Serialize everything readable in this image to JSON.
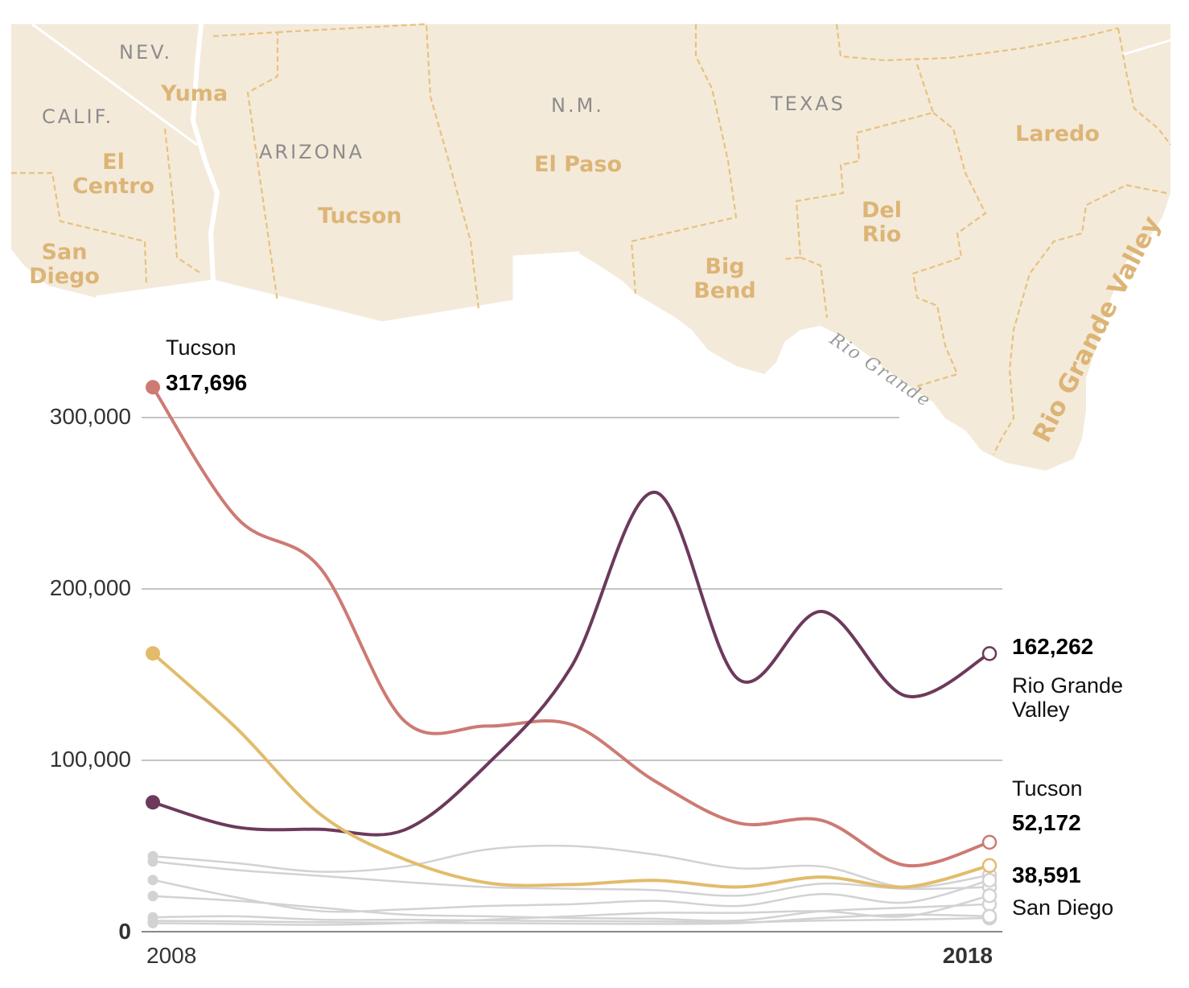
{
  "map": {
    "state_labels": [
      "NEV.",
      "CALIF.",
      "ARIZONA",
      "N.M.",
      "TEXAS"
    ],
    "sector_labels": [
      "Yuma",
      "El",
      "Centro",
      "Tucson",
      "El Paso",
      "San",
      "Diego",
      "Big",
      "Bend",
      "Del",
      "Rio",
      "Laredo",
      "Rio Grande Valley"
    ],
    "river_label": "Rio Grande",
    "land_color": "#f4eada",
    "border_color": "#ffffff",
    "sector_border_color": "#e6c27f",
    "sector_label_color": "#dcb576"
  },
  "chart_data": {
    "type": "line",
    "x": [
      2008,
      2009,
      2010,
      2011,
      2012,
      2013,
      2014,
      2015,
      2016,
      2017,
      2018
    ],
    "ylim": [
      0,
      300000
    ],
    "yticks": [
      "0",
      "100,000",
      "200,000",
      "300,000"
    ],
    "xtick_labels": [
      "2008",
      "2018"
    ],
    "grid": true,
    "series": [
      {
        "name": "Tucson",
        "color": "#cd7a73",
        "highlight": true,
        "values": [
          317696,
          241673,
          212202,
          123285,
          120000,
          120939,
          87915,
          63397,
          64891,
          38657,
          52172
        ]
      },
      {
        "name": "Rio Grande Valley",
        "color": "#6c3a5b",
        "highlight": true,
        "values": [
          75473,
          60992,
          59766,
          59243,
          97762,
          154453,
          256393,
          147257,
          186830,
          137562,
          162262
        ]
      },
      {
        "name": "",
        "color": "#e2bc6c",
        "highlight": true,
        "values": [
          162392,
          118721,
          68565,
          42447,
          28461,
          27496,
          29911,
          26086,
          31891,
          26086,
          38591
        ]
      },
      {
        "name": "San Diego",
        "color": "#d2d2d2",
        "highlight": false,
        "values": [
          8363,
          9000,
          7000,
          7000,
          6500,
          6200,
          6000,
          5500,
          6500,
          7000,
          8000
        ]
      },
      {
        "name": "",
        "color": "#d2d2d2",
        "highlight": false,
        "values": [
          40962,
          36000,
          32562,
          29000,
          26000,
          25000,
          24255,
          21000,
          28000,
          25000,
          26000
        ]
      },
      {
        "name": "",
        "color": "#d2d2d2",
        "highlight": false,
        "values": [
          44000,
          40000,
          35000,
          38000,
          48000,
          50000,
          45000,
          37000,
          38000,
          26000,
          33000
        ]
      },
      {
        "name": "",
        "color": "#d2d2d2",
        "highlight": false,
        "values": [
          30191,
          20000,
          12000,
          13000,
          15000,
          16000,
          18000,
          15000,
          22000,
          17000,
          30000
        ]
      },
      {
        "name": "",
        "color": "#d2d2d2",
        "highlight": false,
        "values": [
          20761,
          18000,
          14000,
          10000,
          9000,
          8000,
          7500,
          6500,
          12000,
          14000,
          16000
        ]
      },
      {
        "name": "",
        "color": "#d2d2d2",
        "highlight": false,
        "values": [
          6357,
          6000,
          5500,
          5200,
          5000,
          4700,
          4500,
          5000,
          8000,
          10000,
          9000
        ]
      },
      {
        "name": "",
        "color": "#d2d2d2",
        "highlight": false,
        "values": [
          5000,
          4500,
          4000,
          5000,
          7000,
          9000,
          11000,
          11000,
          12000,
          9000,
          21000
        ]
      }
    ],
    "annotations": {
      "start_name": "Tucson",
      "start_value": "317,696",
      "end_rgv_value": "162,262",
      "end_rgv_name_1": "Rio Grande",
      "end_rgv_name_2": "Valley",
      "end_tucson_name": "Tucson",
      "end_tucson_value": "52,172",
      "end_yellow_value": "38,591",
      "end_sandiego_name": "San Diego"
    }
  }
}
